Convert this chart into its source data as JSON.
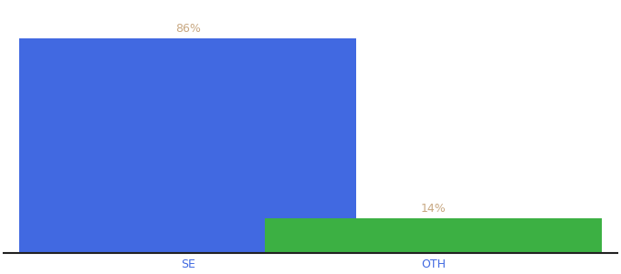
{
  "categories": [
    "SE",
    "OTH"
  ],
  "values": [
    86,
    14
  ],
  "bar_colors": [
    "#4169e1",
    "#3cb043"
  ],
  "label_color": "#c8a882",
  "label_fontsize": 9,
  "xlabel_fontsize": 9,
  "xlabel_color": "#4169e1",
  "background_color": "#ffffff",
  "ylim": [
    0,
    100
  ],
  "bar_width": 0.55,
  "x_positions": [
    0.3,
    0.7
  ],
  "xlim": [
    0.0,
    1.0
  ],
  "figsize": [
    6.8,
    3.0
  ],
  "dpi": 100
}
